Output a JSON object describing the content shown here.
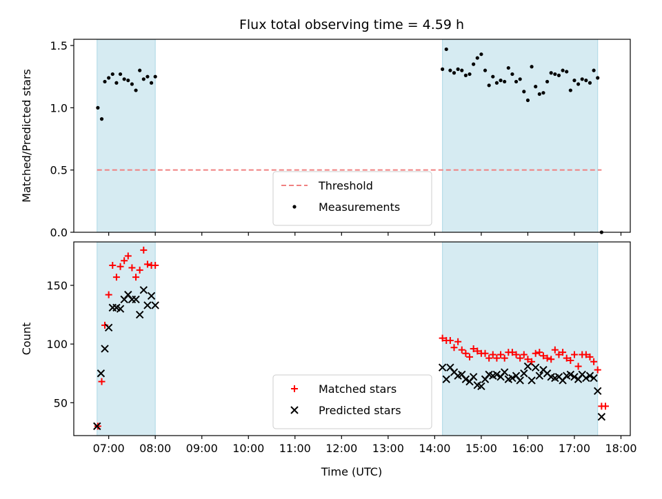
{
  "figure_title": "Flux total observing time = 4.59 h",
  "xlabel": "Time (UTC)",
  "x_ticks": [
    "07:00",
    "08:00",
    "09:00",
    "10:00",
    "11:00",
    "12:00",
    "13:00",
    "14:00",
    "15:00",
    "16:00",
    "17:00",
    "18:00"
  ],
  "shaded_intervals": [
    [
      "06:45",
      "08:00"
    ],
    [
      "14:10",
      "17:30"
    ]
  ],
  "colors": {
    "shade": "#add8e6",
    "threshold": "#f08080",
    "measurements": "#000000",
    "matched": "#ff0000",
    "predicted": "#000000"
  },
  "chart_data": [
    {
      "type": "scatter",
      "ylabel": "Matched/Predicted stars",
      "xlim": [
        "06:15",
        "18:12"
      ],
      "ylim": [
        0,
        1.55
      ],
      "y_ticks": [
        "0.0",
        "0.5",
        "1.0",
        "1.5"
      ],
      "y_tick_values": [
        0,
        0.5,
        1.0,
        1.5
      ],
      "legend_position": "lower-center",
      "threshold": {
        "name": "Threshold",
        "value": 0.5,
        "x_range": [
          "06:45",
          "17:35"
        ],
        "style": "dashed"
      },
      "series": [
        {
          "name": "Measurements",
          "marker": "dot",
          "x": [
            "06:46",
            "06:51",
            "06:55",
            "07:00",
            "07:05",
            "07:10",
            "07:15",
            "07:20",
            "07:25",
            "07:30",
            "07:35",
            "07:40",
            "07:45",
            "07:50",
            "07:55",
            "08:00",
            "14:10",
            "14:15",
            "14:20",
            "14:25",
            "14:30",
            "14:35",
            "14:40",
            "14:45",
            "14:50",
            "14:55",
            "15:00",
            "15:05",
            "15:10",
            "15:15",
            "15:20",
            "15:25",
            "15:30",
            "15:35",
            "15:40",
            "15:45",
            "15:50",
            "15:55",
            "16:00",
            "16:05",
            "16:10",
            "16:15",
            "16:20",
            "16:25",
            "16:30",
            "16:35",
            "16:40",
            "16:45",
            "16:50",
            "16:55",
            "17:00",
            "17:05",
            "17:10",
            "17:15",
            "17:20",
            "17:25",
            "17:30",
            "17:35"
          ],
          "y": [
            1.0,
            0.91,
            1.21,
            1.24,
            1.27,
            1.2,
            1.27,
            1.23,
            1.22,
            1.19,
            1.14,
            1.3,
            1.23,
            1.25,
            1.2,
            1.25,
            1.31,
            1.47,
            1.3,
            1.28,
            1.31,
            1.3,
            1.26,
            1.27,
            1.35,
            1.4,
            1.43,
            1.3,
            1.18,
            1.25,
            1.2,
            1.22,
            1.21,
            1.32,
            1.27,
            1.21,
            1.23,
            1.13,
            1.06,
            1.33,
            1.17,
            1.11,
            1.12,
            1.21,
            1.28,
            1.27,
            1.26,
            1.3,
            1.29,
            1.14,
            1.22,
            1.19,
            1.23,
            1.22,
            1.2,
            1.3,
            1.24,
            0.0
          ]
        }
      ]
    },
    {
      "type": "scatter",
      "ylabel": "Count",
      "xlim": [
        "06:15",
        "18:12"
      ],
      "ylim": [
        22,
        187
      ],
      "y_ticks": [
        "50",
        "100",
        "150"
      ],
      "y_tick_values": [
        50,
        100,
        150
      ],
      "legend_position": "lower-center",
      "series": [
        {
          "name": "Matched stars",
          "marker": "plus",
          "x": [
            "06:46",
            "06:51",
            "06:55",
            "07:00",
            "07:05",
            "07:10",
            "07:15",
            "07:20",
            "07:25",
            "07:30",
            "07:35",
            "07:40",
            "07:45",
            "07:50",
            "07:55",
            "08:00",
            "14:10",
            "14:15",
            "14:20",
            "14:25",
            "14:30",
            "14:35",
            "14:40",
            "14:45",
            "14:50",
            "14:55",
            "15:00",
            "15:05",
            "15:10",
            "15:15",
            "15:20",
            "15:25",
            "15:30",
            "15:35",
            "15:40",
            "15:45",
            "15:50",
            "15:55",
            "16:00",
            "16:05",
            "16:10",
            "16:15",
            "16:20",
            "16:25",
            "16:30",
            "16:35",
            "16:40",
            "16:45",
            "16:50",
            "16:55",
            "17:00",
            "17:05",
            "17:10",
            "17:15",
            "17:20",
            "17:25",
            "17:30",
            "17:35",
            "17:40"
          ],
          "y": [
            30,
            68,
            116,
            142,
            167,
            157,
            166,
            171,
            175,
            165,
            157,
            163,
            180,
            168,
            167,
            167,
            105,
            103,
            103,
            97,
            102,
            95,
            92,
            89,
            96,
            94,
            92,
            92,
            88,
            91,
            88,
            91,
            88,
            93,
            93,
            91,
            88,
            91,
            87,
            85,
            92,
            93,
            90,
            88,
            87,
            95,
            91,
            93,
            88,
            86,
            91,
            81,
            91,
            91,
            89,
            85,
            78,
            47,
            47
          ]
        },
        {
          "name": "Predicted stars",
          "marker": "x",
          "x": [
            "06:45",
            "06:50",
            "06:55",
            "07:00",
            "07:05",
            "07:10",
            "07:15",
            "07:20",
            "07:25",
            "07:30",
            "07:35",
            "07:40",
            "07:45",
            "07:50",
            "07:55",
            "08:00",
            "14:10",
            "14:15",
            "14:20",
            "14:25",
            "14:30",
            "14:35",
            "14:40",
            "14:45",
            "14:50",
            "14:55",
            "15:00",
            "15:05",
            "15:10",
            "15:15",
            "15:20",
            "15:25",
            "15:30",
            "15:35",
            "15:40",
            "15:45",
            "15:50",
            "15:55",
            "16:00",
            "16:05",
            "16:10",
            "16:15",
            "16:20",
            "16:25",
            "16:30",
            "16:35",
            "16:40",
            "16:45",
            "16:50",
            "16:55",
            "17:00",
            "17:05",
            "17:10",
            "17:15",
            "17:20",
            "17:25",
            "17:30",
            "17:35"
          ],
          "y": [
            30,
            75,
            96,
            114,
            131,
            131,
            130,
            138,
            142,
            138,
            138,
            125,
            146,
            133,
            141,
            133,
            80,
            70,
            80,
            76,
            73,
            74,
            70,
            68,
            72,
            65,
            64,
            70,
            74,
            73,
            74,
            72,
            76,
            70,
            71,
            73,
            69,
            75,
            81,
            69,
            80,
            73,
            78,
            75,
            72,
            71,
            72,
            69,
            73,
            74,
            72,
            70,
            74,
            71,
            73,
            71,
            60,
            38
          ]
        }
      ]
    }
  ]
}
